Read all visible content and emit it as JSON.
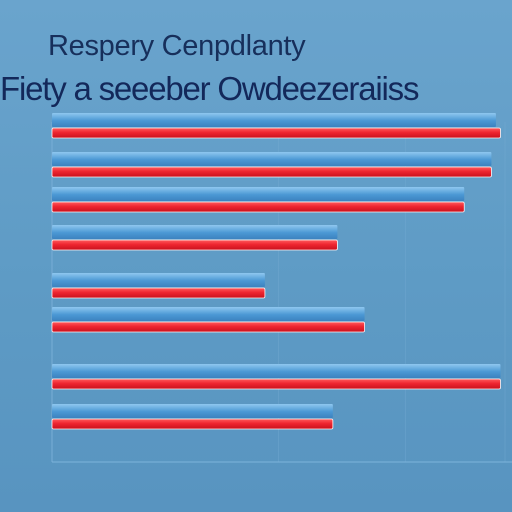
{
  "chart_data": {
    "type": "bar",
    "orientation": "horizontal",
    "title": "Respery Cenpdlanty",
    "subtitle": "Fiety a seeeber Owdeezeraiiss",
    "categories": [
      "",
      "",
      "",
      "",
      "",
      "",
      "",
      ""
    ],
    "xlabel": "",
    "ylabel": "",
    "xlim": [
      0,
      1
    ],
    "grid": true,
    "legend": "none",
    "series": [
      {
        "values": [
          0.99,
          0.97,
          0.91,
          0.63,
          0.47,
          0.69,
          0.99,
          0.62
        ],
        "color": "#e8232d"
      },
      {
        "values": [
          0.98,
          0.97,
          0.91,
          0.63,
          0.47,
          0.69,
          0.99,
          0.62
        ],
        "color": "#4f9bd4"
      }
    ]
  }
}
